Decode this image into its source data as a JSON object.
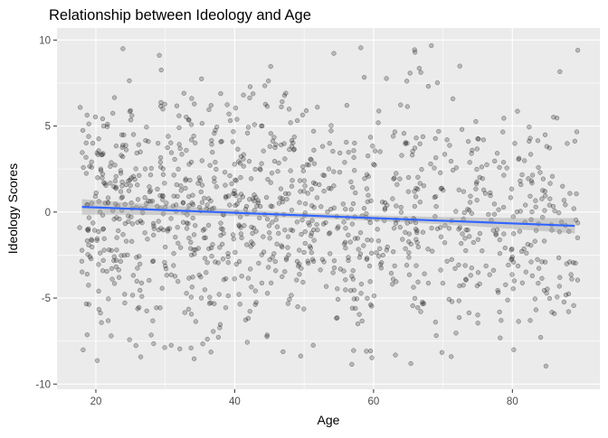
{
  "chart_data": {
    "type": "scatter",
    "title": "Relationship between Ideology and Age",
    "xlabel": "Age",
    "ylabel": "Ideology Scores",
    "xlim": [
      14.4,
      92.6
    ],
    "ylim": [
      -10.3,
      10.7
    ],
    "xticks": [
      20,
      40,
      60,
      80
    ],
    "yticks": [
      -10,
      -5,
      0,
      5,
      10
    ],
    "grid": true,
    "legend": "none",
    "point_count_estimate": 1200,
    "x_range": [
      18,
      89
    ],
    "y_range": [
      -9.2,
      10.1
    ],
    "trend": {
      "method": "linear",
      "x": [
        18,
        89
      ],
      "y": [
        0.3,
        -0.8
      ],
      "ci_halfwidth_ends": 0.45,
      "ci_halfwidth_center": 0.15
    },
    "colors": {
      "panel": "#ebebeb",
      "grid_major": "#ffffff",
      "point_fill": "#000000",
      "trend_line": "#3366ff",
      "ci_band": "#999999",
      "text": "#000000",
      "tick_text": "#4d4d4d"
    }
  }
}
